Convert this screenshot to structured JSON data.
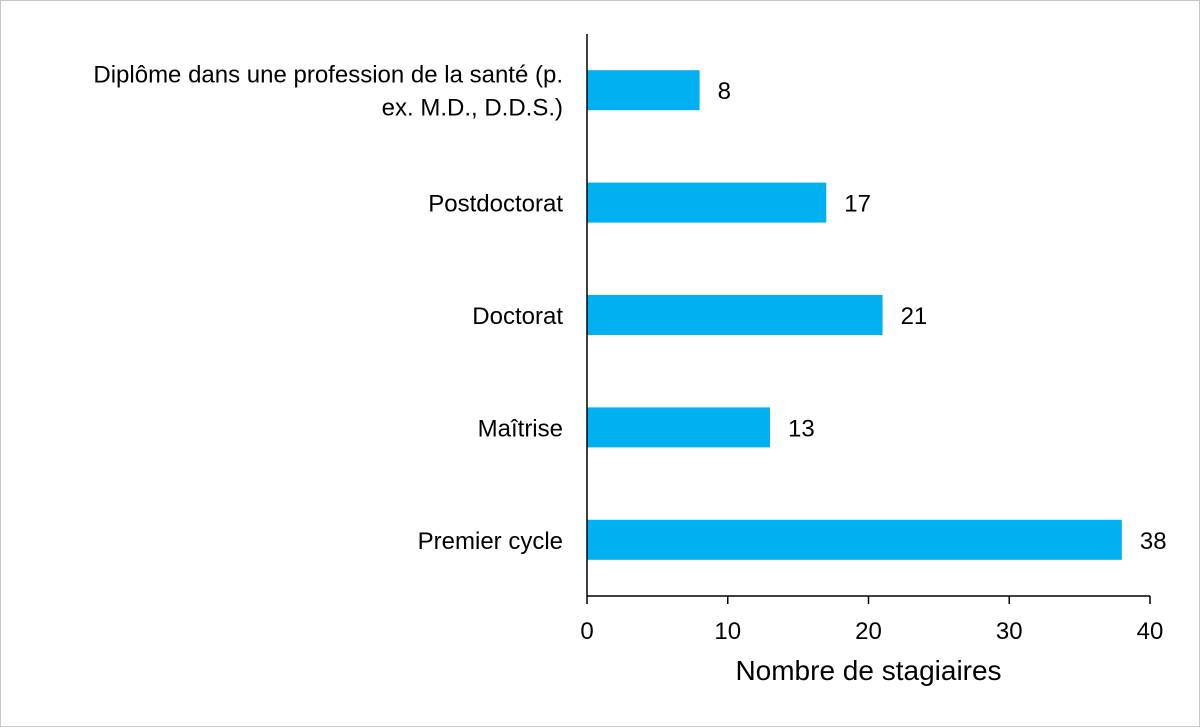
{
  "chart_data": {
    "type": "bar",
    "orientation": "horizontal",
    "categories": [
      [
        "Diplôme dans une profession de la santé (p.",
        "ex. M.D., D.D.S.)"
      ],
      [
        "Postdoctorat"
      ],
      [
        "Doctorat"
      ],
      [
        "Maîtrise"
      ],
      [
        "Premier cycle"
      ]
    ],
    "values": [
      8,
      17,
      21,
      13,
      38
    ],
    "xlabel": "Nombre de stagiaires",
    "xlim": [
      0,
      40
    ],
    "xticks": [
      0,
      10,
      20,
      30,
      40
    ],
    "bar_color": "#00b0f0",
    "grid": false
  }
}
